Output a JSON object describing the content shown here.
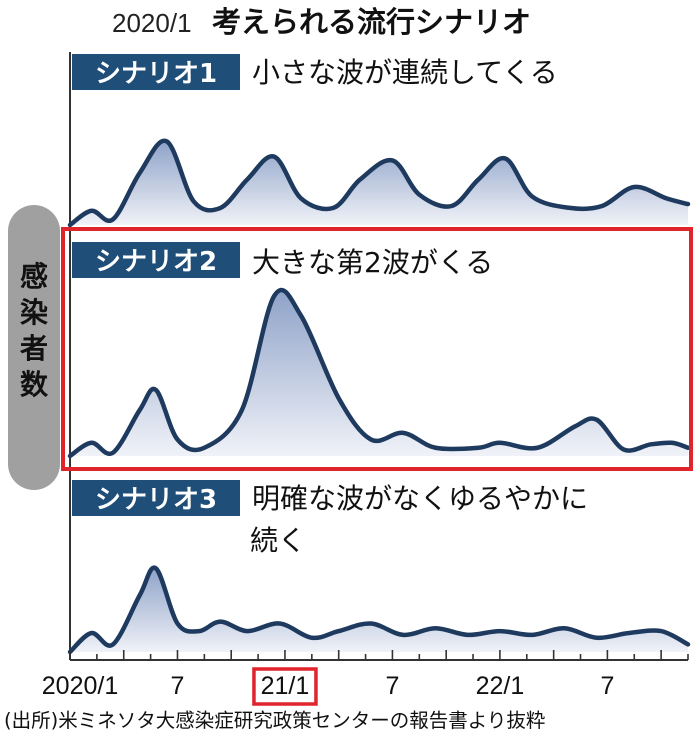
{
  "header": {
    "date": "2020/1",
    "title": "考えられる流行シナリオ"
  },
  "yaxis_label": "感染者数",
  "source": "(出所)米ミネソタ大感染症研究政策センターの報告書より抜粋",
  "colors": {
    "badge": "#1f4e79",
    "line": "#1f3a5f",
    "fill_top": "#8ea2c8",
    "fill_bottom": "#eef1f8",
    "highlight": "#e0242c",
    "axis_label_bg": "#9a9a9a"
  },
  "chart_data": [
    {
      "type": "area",
      "badge": "シナリオ1",
      "subtitle_lines": [
        "小さな波が連続してくる"
      ],
      "x": [
        "2020/1",
        "7",
        "21/1",
        "7",
        "22/1",
        "7"
      ],
      "series": [
        {
          "values": [
            [
              0,
              0.0
            ],
            [
              0.4,
              0.15
            ],
            [
              0.8,
              0.06
            ],
            [
              1.3,
              0.55
            ],
            [
              1.8,
              0.88
            ],
            [
              2.3,
              0.25
            ],
            [
              2.8,
              0.18
            ],
            [
              3.3,
              0.48
            ],
            [
              3.8,
              0.72
            ],
            [
              4.3,
              0.28
            ],
            [
              4.9,
              0.18
            ],
            [
              5.4,
              0.48
            ],
            [
              6.0,
              0.68
            ],
            [
              6.5,
              0.32
            ],
            [
              7.1,
              0.2
            ],
            [
              7.6,
              0.48
            ],
            [
              8.1,
              0.7
            ],
            [
              8.6,
              0.3
            ],
            [
              9.3,
              0.18
            ],
            [
              9.9,
              0.2
            ],
            [
              10.5,
              0.4
            ],
            [
              11.1,
              0.28
            ],
            [
              11.5,
              0.22
            ]
          ]
        }
      ]
    },
    {
      "type": "area",
      "badge": "シナリオ2",
      "subtitle_lines": [
        "大きな第2波がくる"
      ],
      "highlighted": true,
      "x": [
        "2020/1",
        "7",
        "21/1",
        "7",
        "22/1",
        "7"
      ],
      "series": [
        {
          "values": [
            [
              0,
              0.0
            ],
            [
              0.4,
              0.08
            ],
            [
              0.8,
              0.02
            ],
            [
              1.3,
              0.28
            ],
            [
              1.6,
              0.4
            ],
            [
              2.0,
              0.1
            ],
            [
              2.5,
              0.05
            ],
            [
              3.2,
              0.28
            ],
            [
              3.8,
              0.97
            ],
            [
              4.3,
              0.85
            ],
            [
              5.0,
              0.35
            ],
            [
              5.6,
              0.1
            ],
            [
              6.2,
              0.14
            ],
            [
              6.8,
              0.05
            ],
            [
              7.6,
              0.05
            ],
            [
              8.0,
              0.08
            ],
            [
              8.7,
              0.05
            ],
            [
              9.4,
              0.18
            ],
            [
              9.8,
              0.22
            ],
            [
              10.3,
              0.04
            ],
            [
              10.8,
              0.07
            ],
            [
              11.2,
              0.08
            ],
            [
              11.5,
              0.05
            ]
          ]
        }
      ]
    },
    {
      "type": "area",
      "badge": "シナリオ3",
      "subtitle_lines": [
        "明確な波がなくゆるやかに",
        "続く"
      ],
      "x": [
        "2020/1",
        "7",
        "21/1",
        "7",
        "22/1",
        "7"
      ],
      "series": [
        {
          "values": [
            [
              0,
              0.0
            ],
            [
              0.4,
              0.2
            ],
            [
              0.8,
              0.08
            ],
            [
              1.3,
              0.6
            ],
            [
              1.6,
              0.88
            ],
            [
              2.0,
              0.3
            ],
            [
              2.4,
              0.22
            ],
            [
              2.8,
              0.32
            ],
            [
              3.3,
              0.22
            ],
            [
              3.9,
              0.3
            ],
            [
              4.5,
              0.15
            ],
            [
              5.0,
              0.22
            ],
            [
              5.6,
              0.3
            ],
            [
              6.2,
              0.18
            ],
            [
              6.8,
              0.25
            ],
            [
              7.4,
              0.18
            ],
            [
              8.0,
              0.22
            ],
            [
              8.6,
              0.18
            ],
            [
              9.2,
              0.25
            ],
            [
              9.8,
              0.15
            ],
            [
              10.4,
              0.2
            ],
            [
              11.0,
              0.22
            ],
            [
              11.5,
              0.08
            ]
          ]
        }
      ]
    }
  ],
  "x_axis": {
    "ticks": [
      "2020/1",
      "7",
      "21/1",
      "7",
      "22/1",
      "7"
    ],
    "highlighted_tick": "21/1"
  }
}
